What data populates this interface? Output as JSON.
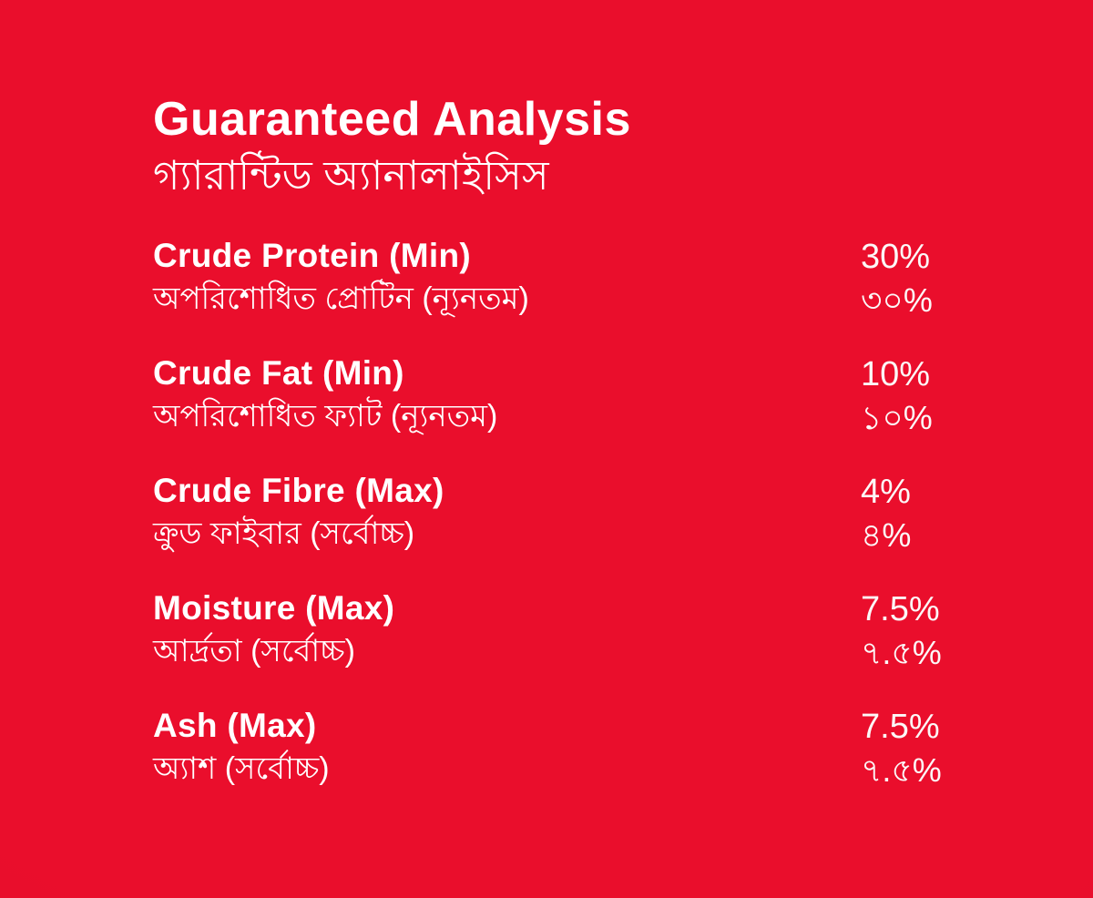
{
  "header": {
    "title_en": "Guaranteed Analysis",
    "title_bn": "গ্যারান্টিড অ্যানালাইসিস"
  },
  "rows": [
    {
      "label_en": "Crude Protein (Min)",
      "label_bn": "অপরিশোধিত প্রোটিন (ন্যূনতম)",
      "value_en": "30%",
      "value_bn": "৩০%"
    },
    {
      "label_en": "Crude Fat (Min)",
      "label_bn": "অপরিশোধিত ফ্যাট (ন্যূনতম)",
      "value_en": "10%",
      "value_bn": "১০%"
    },
    {
      "label_en": "Crude Fibre (Max)",
      "label_bn": "ক্রুড ফাইবার (সর্বোচ্চ)",
      "value_en": "4%",
      "value_bn": "৪%"
    },
    {
      "label_en": "Moisture (Max)",
      "label_bn": "আর্দ্রতা (সর্বোচ্চ)",
      "value_en": "7.5%",
      "value_bn": "৭.৫%"
    },
    {
      "label_en": "Ash (Max)",
      "label_bn": "অ্যাশ (সর্বোচ্চ)",
      "value_en": "7.5%",
      "value_bn": "৭.৫%"
    }
  ],
  "colors": {
    "background": "#EA0E2C",
    "background_edge": "#D20B24",
    "text": "#FFFFFF"
  }
}
